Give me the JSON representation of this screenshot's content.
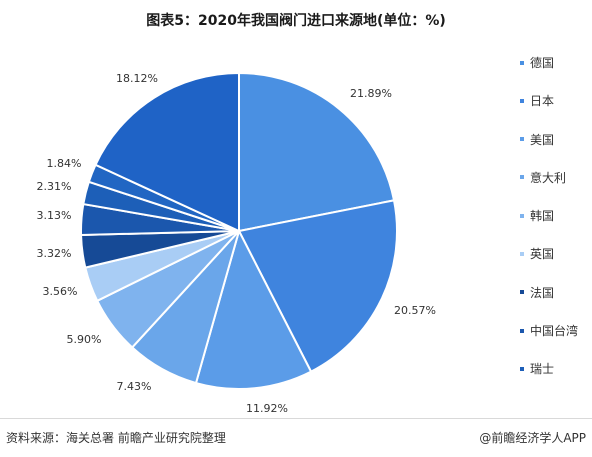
{
  "chart_data": {
    "type": "pie",
    "title": "图表5：2020年我国阀门进口来源地(单位：%)",
    "slices": [
      {
        "label": "德国",
        "value": 21.89,
        "value_label": "21.89%",
        "color": "#4a90e2"
      },
      {
        "label": "日本",
        "value": 20.57,
        "value_label": "20.57%",
        "color": "#3f84de"
      },
      {
        "label": "美国",
        "value": 11.92,
        "value_label": "11.92%",
        "color": "#5b9ce8"
      },
      {
        "label": "意大利",
        "value": 7.43,
        "value_label": "7.43%",
        "color": "#6aa6ea"
      },
      {
        "label": "韩国",
        "value": 5.9,
        "value_label": "5.90%",
        "color": "#7fb3ee"
      },
      {
        "label": "英国",
        "value": 3.56,
        "value_label": "3.56%",
        "color": "#a9cdf5"
      },
      {
        "label": "法国",
        "value": 3.32,
        "value_label": "3.32%",
        "color": "#164a96"
      },
      {
        "label": "中国台湾",
        "value": 3.13,
        "value_label": "3.13%",
        "color": "#1b57ad"
      },
      {
        "label": "瑞士",
        "value": 2.31,
        "value_label": "2.31%",
        "color": "#1d5fb8"
      },
      {
        "label": "",
        "value": 1.84,
        "value_label": "1.84%",
        "color": "#2166c3"
      },
      {
        "label": "",
        "value": 18.12,
        "value_label": "18.12%",
        "color": "#1f63c6"
      }
    ]
  },
  "footer": {
    "source": "资料来源：海关总署  前瞻产业研究院整理",
    "brand": "@前瞻经济学人APP"
  }
}
